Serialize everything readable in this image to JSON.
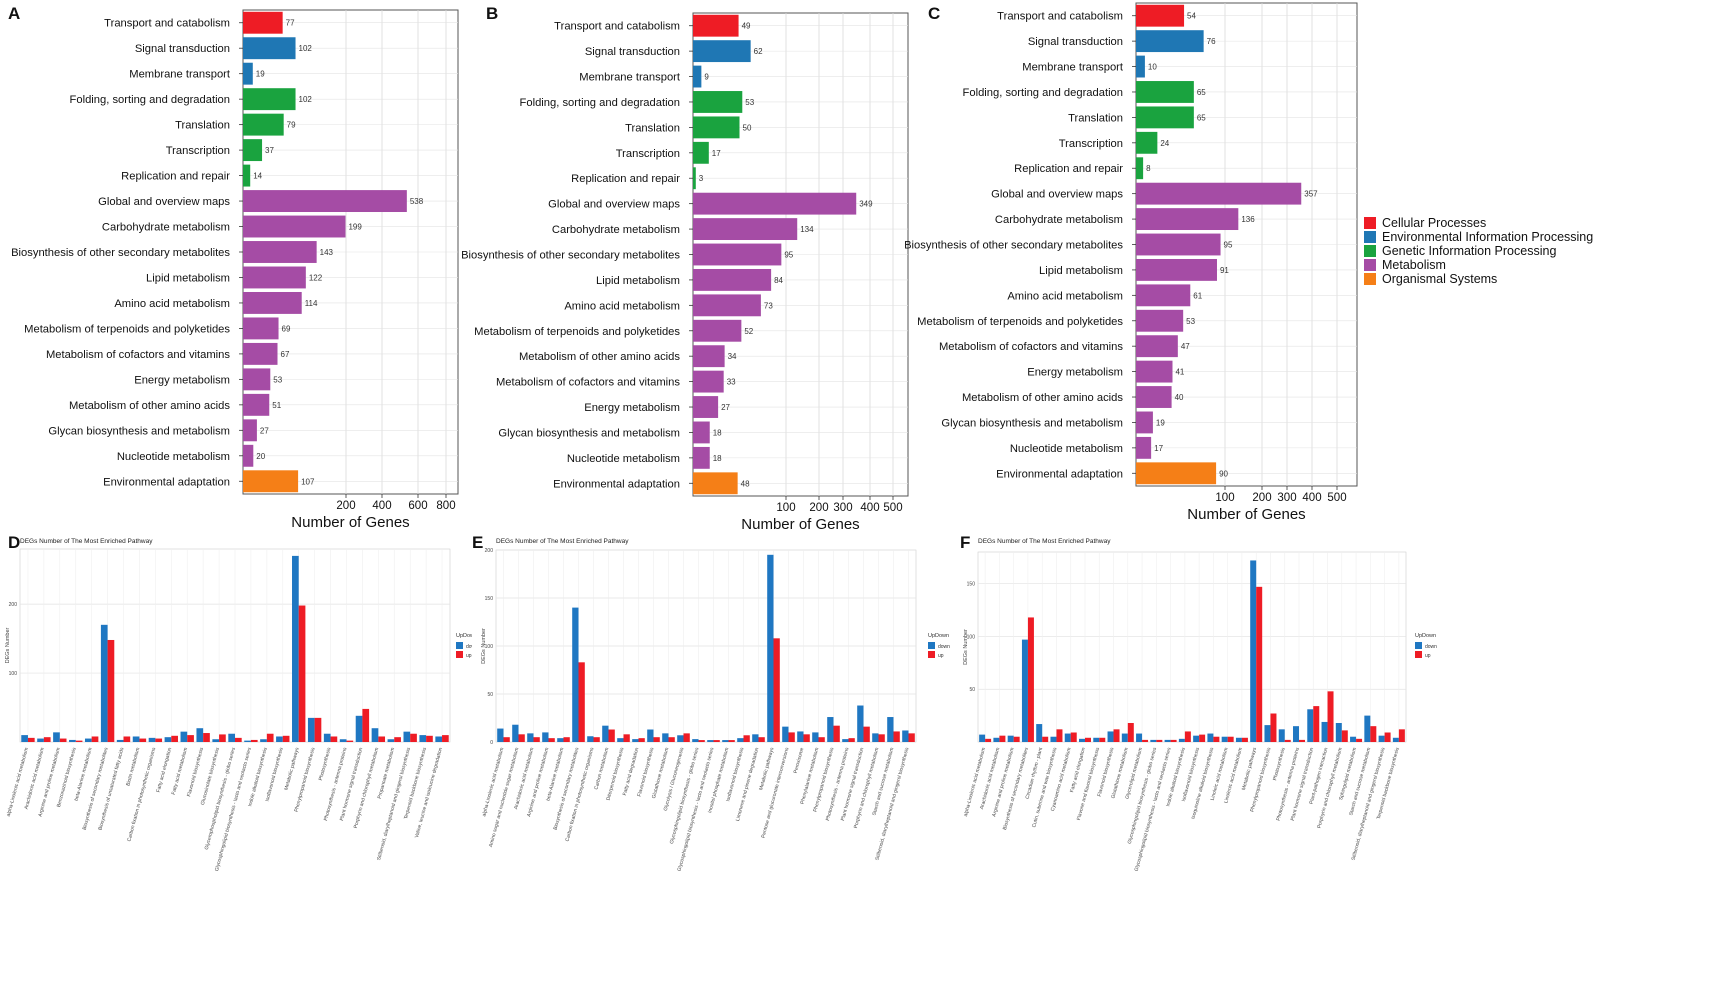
{
  "panel_labels": [
    "A",
    "B",
    "C",
    "D",
    "E",
    "F"
  ],
  "legend": {
    "items": [
      {
        "label": "Cellular Processes",
        "color": "#ee1c25"
      },
      {
        "label": "Environmental Information Processing",
        "color": "#1f77b4"
      },
      {
        "label": "Genetic Information Processing",
        "color": "#1aa33f"
      },
      {
        "label": "Metabolism",
        "color": "#a54ca5"
      },
      {
        "label": "Organismal Systems",
        "color": "#f57f17"
      }
    ]
  },
  "chart_data": [
    {
      "id": "A",
      "type": "bar",
      "orientation": "horizontal",
      "xlabel": "Number of Genes",
      "xlim": [
        0,
        900
      ],
      "xticks": [
        200,
        400,
        600,
        800
      ],
      "categories": [
        "Transport and catabolism",
        "Signal transduction",
        "Membrane transport",
        "Folding, sorting and degradation",
        "Translation",
        "Transcription",
        "Replication and repair",
        "Global and overview maps",
        "Carbohydrate metabolism",
        "Biosynthesis of other secondary metabolites",
        "Lipid metabolism",
        "Amino acid metabolism",
        "Metabolism of terpenoids and polyketides",
        "Metabolism of cofactors and vitamins",
        "Energy metabolism",
        "Metabolism of other amino acids",
        "Glycan biosynthesis and metabolism",
        "Nucleotide metabolism",
        "Environmental adaptation"
      ],
      "values": [
        77,
        102,
        19,
        102,
        79,
        37,
        14,
        538,
        199,
        143,
        122,
        114,
        69,
        67,
        53,
        51,
        27,
        20,
        107
      ],
      "groups": [
        "Cellular Processes",
        "Environmental Information Processing",
        "Environmental Information Processing",
        "Genetic Information Processing",
        "Genetic Information Processing",
        "Genetic Information Processing",
        "Genetic Information Processing",
        "Metabolism",
        "Metabolism",
        "Metabolism",
        "Metabolism",
        "Metabolism",
        "Metabolism",
        "Metabolism",
        "Metabolism",
        "Metabolism",
        "Metabolism",
        "Metabolism",
        "Organismal Systems"
      ]
    },
    {
      "id": "B",
      "type": "bar",
      "orientation": "horizontal",
      "xlabel": "Number of Genes",
      "xlim": [
        0,
        550
      ],
      "xticks": [
        100,
        200,
        300,
        400,
        500
      ],
      "categories": [
        "Transport and catabolism",
        "Signal transduction",
        "Membrane transport",
        "Folding, sorting and degradation",
        "Translation",
        "Transcription",
        "Replication and repair",
        "Global and overview maps",
        "Carbohydrate metabolism",
        "Biosynthesis of other secondary metabolites",
        "Lipid metabolism",
        "Amino acid metabolism",
        "Metabolism of terpenoids and polyketides",
        "Metabolism of other amino acids",
        "Metabolism of cofactors and vitamins",
        "Energy metabolism",
        "Glycan biosynthesis and metabolism",
        "Nucleotide metabolism",
        "Environmental adaptation"
      ],
      "values": [
        49,
        62,
        9,
        53,
        50,
        17,
        3,
        349,
        134,
        95,
        84,
        73,
        52,
        34,
        33,
        27,
        18,
        18,
        48
      ],
      "groups": [
        "Cellular Processes",
        "Environmental Information Processing",
        "Environmental Information Processing",
        "Genetic Information Processing",
        "Genetic Information Processing",
        "Genetic Information Processing",
        "Genetic Information Processing",
        "Metabolism",
        "Metabolism",
        "Metabolism",
        "Metabolism",
        "Metabolism",
        "Metabolism",
        "Metabolism",
        "Metabolism",
        "Metabolism",
        "Metabolism",
        "Metabolism",
        "Organismal Systems"
      ]
    },
    {
      "id": "C",
      "type": "bar",
      "orientation": "horizontal",
      "xlabel": "Number of Genes",
      "xlim": [
        0,
        550
      ],
      "xticks": [
        100,
        200,
        300,
        400,
        500
      ],
      "categories": [
        "Transport and catabolism",
        "Signal transduction",
        "Membrane transport",
        "Folding, sorting and degradation",
        "Translation",
        "Transcription",
        "Replication and repair",
        "Global and overview maps",
        "Carbohydrate metabolism",
        "Biosynthesis of other secondary metabolites",
        "Lipid metabolism",
        "Amino acid metabolism",
        "Metabolism of terpenoids and polyketides",
        "Metabolism of cofactors and vitamins",
        "Energy metabolism",
        "Metabolism of other amino acids",
        "Glycan biosynthesis and metabolism",
        "Nucleotide metabolism",
        "Environmental adaptation"
      ],
      "values": [
        54,
        76,
        10,
        65,
        65,
        24,
        8,
        357,
        136,
        95,
        91,
        61,
        53,
        47,
        41,
        40,
        19,
        17,
        90
      ],
      "groups": [
        "Cellular Processes",
        "Environmental Information Processing",
        "Environmental Information Processing",
        "Genetic Information Processing",
        "Genetic Information Processing",
        "Genetic Information Processing",
        "Genetic Information Processing",
        "Metabolism",
        "Metabolism",
        "Metabolism",
        "Metabolism",
        "Metabolism",
        "Metabolism",
        "Metabolism",
        "Metabolism",
        "Metabolism",
        "Metabolism",
        "Metabolism",
        "Organismal Systems"
      ]
    },
    {
      "id": "D",
      "type": "bar",
      "orientation": "vertical",
      "title": "DEGs Number of The Most Enriched Pathway",
      "ylabel": "DEGs Number",
      "ylim": [
        0,
        280
      ],
      "yticks": [
        100,
        200
      ],
      "legend_title": "UpDown",
      "series_names": [
        "down",
        "up"
      ],
      "categories": [
        "alpha-Linolenic acid metabolism",
        "Arachidonic acid metabolism",
        "Arginine and proline metabolism",
        "Benzoxazinoid biosynthesis",
        "beta-Alanine metabolism",
        "Biosynthesis of secondary metabolites",
        "Biosynthesis of unsaturated fatty acids",
        "Biotin metabolism",
        "Carbon fixation in photosynthetic organisms",
        "Fatty acid elongation",
        "Fatty acid metabolism",
        "Flavonoid biosynthesis",
        "Glucosinolate biosynthesis",
        "Glycerophospholipid biosynthesis - globo series",
        "Glycosphingolipid biosynthesis - lacto and neolacto series",
        "Indole alkaloid biosynthesis",
        "Isoflavonoid biosynthesis",
        "Metabolic pathways",
        "Phenylpropanoid biosynthesis",
        "Photosynthesis",
        "Photosynthesis - antenna proteins",
        "Plant hormone signal transduction",
        "Porphyrin and chlorophyll metabolism",
        "Propanoate metabolism",
        "Stilbenoid, diarylheptanoid and gingerol biosynthesis",
        "Terpenoid backbone biosynthesis",
        "Valine, leucine and isoleucine degradation"
      ],
      "series": [
        {
          "name": "down",
          "values": [
            10,
            5,
            14,
            3,
            5,
            170,
            3,
            8,
            6,
            7,
            15,
            20,
            4,
            12,
            2,
            4,
            8,
            270,
            35,
            12,
            4,
            38,
            20,
            4,
            15,
            10,
            8
          ]
        },
        {
          "name": "up",
          "values": [
            6,
            7,
            5,
            2,
            8,
            148,
            8,
            5,
            5,
            9,
            10,
            13,
            11,
            6,
            3,
            12,
            9,
            198,
            35,
            8,
            2,
            48,
            8,
            7,
            12,
            9,
            10
          ]
        }
      ]
    },
    {
      "id": "E",
      "type": "bar",
      "orientation": "vertical",
      "title": "DEGs Number of The Most Enriched Pathway",
      "ylabel": "DEGs Number",
      "ylim": [
        0,
        200
      ],
      "yticks": [
        0,
        50,
        100,
        150,
        200
      ],
      "legend_title": "UpDown",
      "series_names": [
        "down",
        "up"
      ],
      "categories": [
        "alpha-Linolenic acid metabolism",
        "Amino sugar and nucleotide sugar metabolism",
        "Arachidonic acid metabolism",
        "Arginine and proline metabolism",
        "beta-Alanine metabolism",
        "Biosynthesis of secondary metabolites",
        "Carbon fixation in photosynthetic organisms",
        "Carbon metabolism",
        "Diterpenoid biosynthesis",
        "Fatty acid degradation",
        "Flavonoid biosynthesis",
        "Glutathione metabolism",
        "Glycolysis / Gluconeogenesis",
        "Glycosphingolipid biosynthesis - globo series",
        "Glycosphingolipid biosynthesis - lacto and neolacto series",
        "Inositol phosphate metabolism",
        "Isoflavonoid biosynthesis",
        "Limonene and pinene degradation",
        "Metabolic pathways",
        "Pentose and glucuronate interconversions",
        "Peroxisome",
        "Phenylalanine metabolism",
        "Phenylpropanoid biosynthesis",
        "Photosynthesis - antenna proteins",
        "Plant hormone signal transduction",
        "Porphyrin and chlorophyll metabolism",
        "Starch and sucrose metabolism",
        "Stilbenoid, diarylheptanoid and gingerol biosynthesis"
      ],
      "series": [
        {
          "name": "down",
          "values": [
            14,
            18,
            9,
            10,
            4,
            140,
            6,
            17,
            4,
            3,
            13,
            9,
            7,
            3,
            2,
            2,
            4,
            8,
            195,
            16,
            11,
            10,
            26,
            3,
            38,
            9,
            26,
            12
          ]
        },
        {
          "name": "up",
          "values": [
            5,
            8,
            5,
            4,
            5,
            83,
            5,
            13,
            8,
            4,
            5,
            5,
            9,
            2,
            2,
            2,
            7,
            5,
            108,
            10,
            8,
            5,
            17,
            4,
            16,
            8,
            11,
            9
          ]
        }
      ]
    },
    {
      "id": "F",
      "type": "bar",
      "orientation": "vertical",
      "title": "DEGs Number of The Most Enriched Pathway",
      "ylabel": "DEGs Number",
      "ylim": [
        0,
        180
      ],
      "yticks": [
        50,
        100,
        150
      ],
      "legend_title": "UpDown",
      "series_names": [
        "down",
        "up"
      ],
      "categories": [
        "alpha-Linolenic acid metabolism",
        "Arachidonic acid metabolism",
        "Arginine and proline metabolism",
        "Biosynthesis of secondary metabolites",
        "Circadian rhythm - plant",
        "Cutin, suberine and wax biosynthesis",
        "Cyanoamino acid metabolism",
        "Fatty acid elongation",
        "Flavone and flavonol biosynthesis",
        "Flavonoid biosynthesis",
        "Glutathione metabolism",
        "Glycerolipid metabolism",
        "Glycosphingolipid biosynthesis - globo series",
        "Glycosphingolipid biosynthesis - lacto and neolacto series",
        "Indole alkaloid biosynthesis",
        "Isoflavonoid biosynthesis",
        "Isoquinoline alkaloid biosynthesis",
        "Linoleic acid metabolism",
        "Linolenic acid metabolism",
        "Metabolic pathways",
        "Phenylpropanoid biosynthesis",
        "Photosynthesis",
        "Photosynthesis - antenna proteins",
        "Plant hormone signal transduction",
        "Plant-pathogen interaction",
        "Porphyrin and chlorophyll metabolism",
        "Sphingolipid metabolism",
        "Starch and sucrose metabolism",
        "Stilbenoid, diarylheptanoid and gingerol biosynthesis",
        "Terpenoid backbone biosynthesis"
      ],
      "series": [
        {
          "name": "down",
          "values": [
            7,
            4,
            6,
            97,
            17,
            5,
            8,
            3,
            4,
            10,
            8,
            8,
            2,
            2,
            3,
            6,
            8,
            5,
            4,
            172,
            16,
            12,
            15,
            31,
            19,
            18,
            5,
            25,
            6,
            4
          ]
        },
        {
          "name": "up",
          "values": [
            3,
            6,
            5,
            118,
            5,
            12,
            9,
            4,
            4,
            12,
            18,
            2,
            2,
            2,
            10,
            7,
            5,
            5,
            4,
            147,
            27,
            2,
            2,
            34,
            48,
            11,
            3,
            15,
            9,
            12
          ]
        }
      ]
    }
  ]
}
